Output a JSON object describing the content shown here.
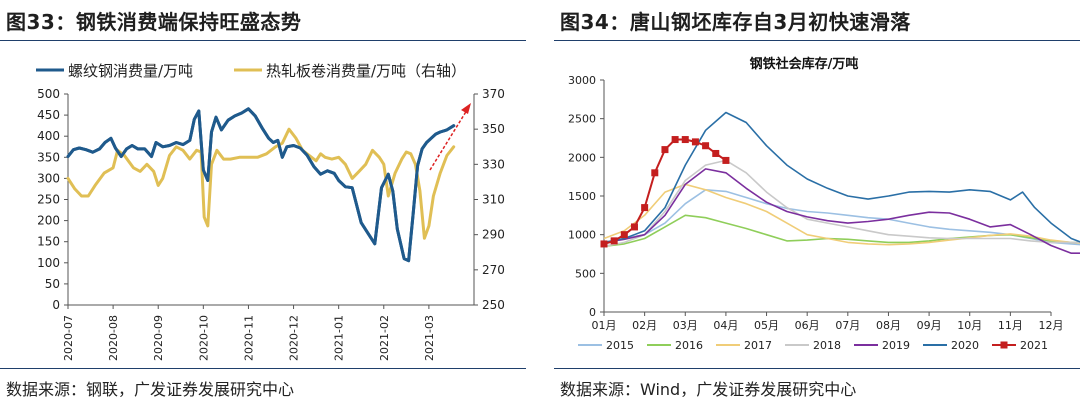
{
  "left": {
    "fig_title": "图33：钢铁消费端保持旺盛态势",
    "source": "数据来源：钢联，广发证券发展研究中心",
    "chart_data": {
      "type": "line",
      "x_ticks": [
        "2020-07",
        "2020-08",
        "2020-09",
        "2020-10",
        "2020-11",
        "2020-12",
        "2021-01",
        "2021-02",
        "2021-03"
      ],
      "y_left_ticks": [
        "500",
        "450",
        "400",
        "350",
        "300",
        "250",
        "200",
        "150",
        "100",
        "50",
        "0"
      ],
      "y_right_ticks": [
        "370",
        "350",
        "330",
        "310",
        "290",
        "270",
        "250"
      ],
      "ylim_left": [
        0,
        500
      ],
      "ylim_right": [
        250,
        370
      ],
      "series": [
        {
          "name": "螺纹钢消费量/万吨",
          "axis": "left",
          "color": "#1f5a8c",
          "x": [
            0,
            0.12,
            0.25,
            0.4,
            0.55,
            0.7,
            0.82,
            0.95,
            1.05,
            1.18,
            1.3,
            1.42,
            1.55,
            1.7,
            1.85,
            1.95,
            2.1,
            2.25,
            2.4,
            2.55,
            2.7,
            2.8,
            2.9,
            3.0,
            3.1,
            3.18,
            3.28,
            3.4,
            3.55,
            3.7,
            3.85,
            4.0,
            4.15,
            4.3,
            4.45,
            4.55,
            4.65,
            4.75,
            4.85,
            5.0,
            5.15,
            5.3,
            5.45,
            5.6,
            5.75,
            5.9,
            6.0,
            6.15,
            6.3,
            6.5,
            6.65,
            6.8,
            6.95,
            7.1,
            7.2,
            7.3,
            7.45,
            7.55,
            7.65,
            7.75,
            7.85,
            7.95,
            8.05,
            8.15,
            8.25,
            8.4,
            8.55
          ],
          "values": [
            352,
            368,
            372,
            368,
            362,
            370,
            385,
            395,
            372,
            352,
            370,
            378,
            370,
            370,
            352,
            385,
            375,
            378,
            385,
            380,
            390,
            440,
            460,
            320,
            295,
            410,
            445,
            415,
            438,
            448,
            455,
            465,
            448,
            420,
            395,
            385,
            390,
            350,
            375,
            378,
            372,
            355,
            328,
            310,
            318,
            312,
            295,
            280,
            278,
            195,
            170,
            145,
            278,
            310,
            270,
            180,
            110,
            105,
            215,
            330,
            370,
            385,
            395,
            405,
            410,
            415,
            425
          ]
        },
        {
          "name": "热轧板卷消费量/万吨（右轴）",
          "axis": "right",
          "color": "#e0bf55",
          "x": [
            0,
            0.15,
            0.3,
            0.45,
            0.6,
            0.8,
            1.0,
            1.1,
            1.25,
            1.45,
            1.6,
            1.75,
            1.9,
            2.0,
            2.1,
            2.25,
            2.4,
            2.55,
            2.7,
            2.85,
            2.95,
            3.02,
            3.1,
            3.18,
            3.3,
            3.45,
            3.6,
            3.8,
            4.0,
            4.2,
            4.4,
            4.6,
            4.75,
            4.9,
            5.05,
            5.2,
            5.35,
            5.5,
            5.6,
            5.7,
            5.85,
            6.0,
            6.15,
            6.3,
            6.45,
            6.6,
            6.75,
            6.9,
            7.0,
            7.1,
            7.25,
            7.4,
            7.5,
            7.6,
            7.7,
            7.8,
            7.9,
            8.0,
            8.1,
            8.25,
            8.4,
            8.55
          ],
          "values": [
            322,
            316,
            312,
            312,
            318,
            325,
            328,
            338,
            335,
            328,
            326,
            330,
            326,
            318,
            322,
            335,
            340,
            338,
            333,
            338,
            337,
            300,
            295,
            330,
            338,
            333,
            333,
            334,
            334,
            334,
            336,
            340,
            342,
            350,
            345,
            338,
            335,
            332,
            336,
            334,
            333,
            334,
            330,
            322,
            326,
            330,
            338,
            334,
            330,
            312,
            325,
            333,
            337,
            336,
            330,
            315,
            288,
            295,
            312,
            325,
            335,
            340
          ]
        }
      ],
      "annotation": "red dashed arrow pointing up-right"
    }
  },
  "right": {
    "fig_title": "图34：唐山钢坯库存自3月初快速滑落",
    "source": "数据来源：Wind，广发证券发展研究中心",
    "chart_data": {
      "type": "line",
      "title": "钢铁社会库存/万吨",
      "x_ticks": [
        "01月",
        "02月",
        "03月",
        "04月",
        "05月",
        "06月",
        "07月",
        "08月",
        "09月",
        "10月",
        "11月",
        "12月"
      ],
      "y_ticks": [
        "3000",
        "2500",
        "2000",
        "1500",
        "1000",
        "500",
        "0"
      ],
      "ylim": [
        0,
        3000
      ],
      "series": [
        {
          "name": "2015",
          "color": "#9cc0e3",
          "x": [
            0,
            0.5,
            1,
            1.5,
            2,
            2.5,
            3,
            3.5,
            4,
            4.5,
            5,
            5.5,
            6,
            6.5,
            7,
            7.5,
            8,
            8.5,
            9,
            9.5,
            10,
            10.5,
            11,
            11.5,
            12
          ],
          "values": [
            900,
            950,
            1000,
            1150,
            1400,
            1580,
            1560,
            1480,
            1400,
            1340,
            1300,
            1280,
            1250,
            1220,
            1200,
            1150,
            1100,
            1070,
            1050,
            1030,
            1000,
            950,
            900,
            880,
            860
          ]
        },
        {
          "name": "2016",
          "color": "#8fce5a",
          "x": [
            0,
            0.5,
            1,
            1.5,
            2,
            2.5,
            3,
            3.5,
            4,
            4.5,
            5,
            5.5,
            6,
            6.5,
            7,
            7.5,
            8,
            8.5,
            9,
            9.5,
            10,
            10.5,
            11,
            11.5,
            12
          ],
          "values": [
            850,
            880,
            950,
            1100,
            1250,
            1220,
            1150,
            1080,
            1000,
            920,
            930,
            950,
            940,
            920,
            900,
            900,
            920,
            950,
            970,
            990,
            1000,
            960,
            920,
            900,
            900
          ]
        },
        {
          "name": "2017",
          "color": "#f0cd78",
          "x": [
            0,
            0.5,
            1,
            1.5,
            2,
            2.5,
            3,
            3.5,
            4,
            4.5,
            5,
            5.5,
            6,
            6.5,
            7,
            7.5,
            8,
            8.5,
            9,
            9.5,
            10,
            10.5,
            11,
            11.5,
            12
          ],
          "values": [
            950,
            1050,
            1250,
            1550,
            1650,
            1580,
            1480,
            1400,
            1300,
            1150,
            1000,
            950,
            900,
            880,
            870,
            880,
            900,
            930,
            960,
            990,
            1010,
            980,
            930,
            900,
            880
          ]
        },
        {
          "name": "2018",
          "color": "#c9c9c9",
          "x": [
            0,
            0.5,
            1,
            1.5,
            2,
            2.5,
            3,
            3.5,
            4,
            4.5,
            5,
            5.5,
            6,
            6.5,
            7,
            7.5,
            8,
            8.5,
            9,
            9.5,
            10,
            10.5,
            11,
            11.5,
            12
          ],
          "values": [
            850,
            900,
            1000,
            1300,
            1700,
            1900,
            1960,
            1800,
            1550,
            1350,
            1200,
            1150,
            1100,
            1050,
            1000,
            980,
            960,
            950,
            950,
            950,
            950,
            920,
            900,
            900,
            900
          ]
        },
        {
          "name": "2019",
          "color": "#7b2f9e",
          "x": [
            0,
            0.5,
            1,
            1.5,
            2,
            2.5,
            3,
            3.5,
            4,
            4.5,
            5,
            5.5,
            6,
            6.5,
            7,
            7.5,
            8,
            8.5,
            9,
            9.5,
            10,
            10.5,
            11,
            11.5,
            12
          ],
          "values": [
            900,
            940,
            1000,
            1250,
            1650,
            1850,
            1800,
            1600,
            1420,
            1300,
            1230,
            1180,
            1150,
            1170,
            1200,
            1250,
            1290,
            1280,
            1200,
            1100,
            1130,
            1000,
            860,
            760,
            760
          ]
        },
        {
          "name": "2020",
          "color": "#2a6fa6",
          "x": [
            0,
            0.5,
            1,
            1.5,
            2,
            2.5,
            3,
            3.5,
            4,
            4.5,
            5,
            5.5,
            6,
            6.5,
            7,
            7.5,
            8,
            8.5,
            9,
            9.5,
            10,
            10.3,
            10.6,
            11,
            11.5,
            12
          ],
          "values": [
            900,
            950,
            1050,
            1350,
            1900,
            2350,
            2580,
            2450,
            2150,
            1900,
            1720,
            1600,
            1500,
            1460,
            1500,
            1550,
            1560,
            1550,
            1580,
            1560,
            1450,
            1550,
            1350,
            1150,
            950,
            850
          ]
        },
        {
          "name": "2021",
          "color": "#c41f1f",
          "marker": "square",
          "x": [
            0,
            0.25,
            0.5,
            0.75,
            1,
            1.25,
            1.5,
            1.75,
            2,
            2.25,
            2.5,
            2.75,
            3
          ],
          "values": [
            880,
            920,
            1000,
            1100,
            1350,
            1800,
            2100,
            2230,
            2230,
            2200,
            2150,
            2050,
            1960
          ]
        }
      ],
      "legend": [
        "2015",
        "2016",
        "2017",
        "2018",
        "2019",
        "2020",
        "2021"
      ]
    }
  }
}
